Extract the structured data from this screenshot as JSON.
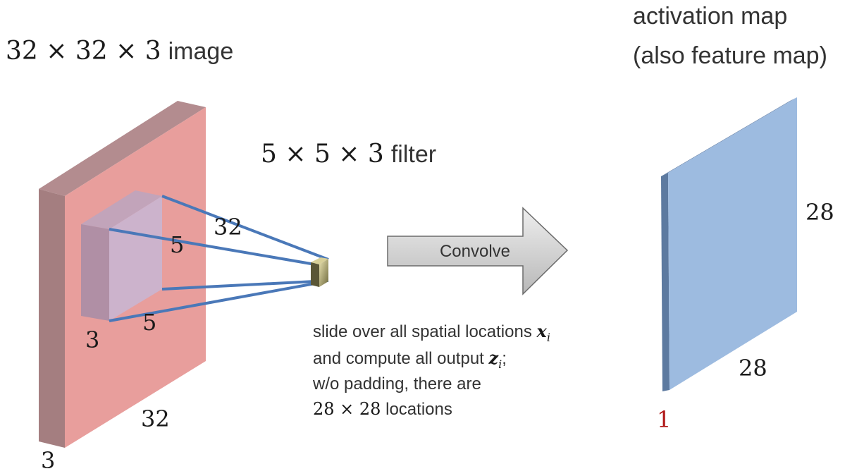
{
  "image_title": {
    "dims": "32 × 32 × 3",
    "word": "image"
  },
  "filter_title": {
    "dims": "5 × 5 × 3",
    "word": "filter"
  },
  "activation_title": {
    "line1": "activation map",
    "line2": "(also feature map)"
  },
  "input_labels": {
    "width": "32",
    "height": "32",
    "depth": "3"
  },
  "filter_labels": {
    "width": "5",
    "height": "5",
    "depth": "3"
  },
  "arrow_label": "Convolve",
  "description": {
    "line1_text": "slide over all spatial locations ",
    "line1_math_main": "x",
    "line1_math_sub": "i",
    "line2_text": "and compute all output ",
    "line2_math_main": "z",
    "line2_math_sub": "i",
    "line2_tail": ";",
    "line3_text": "w/o padding, there are",
    "line4_math": "28 × 28",
    "line4_text": " locations"
  },
  "output_labels": {
    "height": "28",
    "width": "28",
    "depth": "1"
  },
  "colors": {
    "input_face": "#e89e9c",
    "input_side": "#a47e80",
    "output_face": "#9dbbe0",
    "output_side": "#5d7aa0",
    "filter_lines": "#4a78b8",
    "arrow_fill": "#c9c9c9",
    "depth_one_label": "#b01818"
  }
}
